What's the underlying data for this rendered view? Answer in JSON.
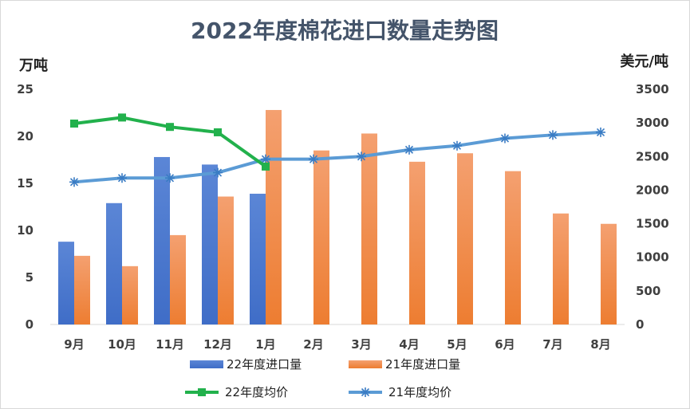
{
  "colors": {
    "bar22": "#3f6dc7",
    "bar22_top": "#5b86d6",
    "bar21": "#ed7d31",
    "bar21_top": "#f4a070",
    "line22": "#22b14c",
    "line21": "#5b9bd5",
    "axis": "#d9d9d9",
    "title": "#44546a"
  },
  "chart_data": {
    "type": "bar",
    "title": "2022年度棉花进口数量走势图",
    "y_left_label": "万吨",
    "y_right_label": "美元/吨",
    "categories": [
      "9月",
      "10月",
      "11月",
      "12月",
      "1月",
      "2月",
      "3月",
      "4月",
      "5月",
      "6月",
      "7月",
      "8月"
    ],
    "y_left_ticks": [
      "0",
      "5",
      "10",
      "15",
      "20",
      "25"
    ],
    "y_right_ticks": [
      "0",
      "500",
      "1000",
      "1500",
      "2000",
      "2500",
      "3000",
      "3500"
    ],
    "ylim_left": [
      0,
      25
    ],
    "ylim_right": [
      0,
      3500
    ],
    "series": [
      {
        "name": "22年度进口量",
        "kind": "bar",
        "axis": "left",
        "values": [
          8.8,
          12.9,
          17.8,
          17.0,
          13.9,
          null,
          null,
          null,
          null,
          null,
          null,
          null
        ]
      },
      {
        "name": "21年度进口量",
        "kind": "bar",
        "axis": "left",
        "values": [
          7.3,
          6.2,
          9.5,
          13.6,
          22.8,
          18.5,
          20.3,
          17.3,
          18.2,
          16.3,
          11.8,
          10.7
        ]
      },
      {
        "name": "22年度均价",
        "kind": "line",
        "axis": "right",
        "marker": "square",
        "values": [
          2990,
          3080,
          2940,
          2860,
          2350,
          null,
          null,
          null,
          null,
          null,
          null,
          null
        ]
      },
      {
        "name": "21年度均价",
        "kind": "line",
        "axis": "right",
        "marker": "star",
        "values": [
          2120,
          2180,
          2180,
          2260,
          2460,
          2460,
          2500,
          2600,
          2660,
          2770,
          2820,
          2860
        ]
      }
    ],
    "legend_position": "bottom",
    "grid": false
  }
}
